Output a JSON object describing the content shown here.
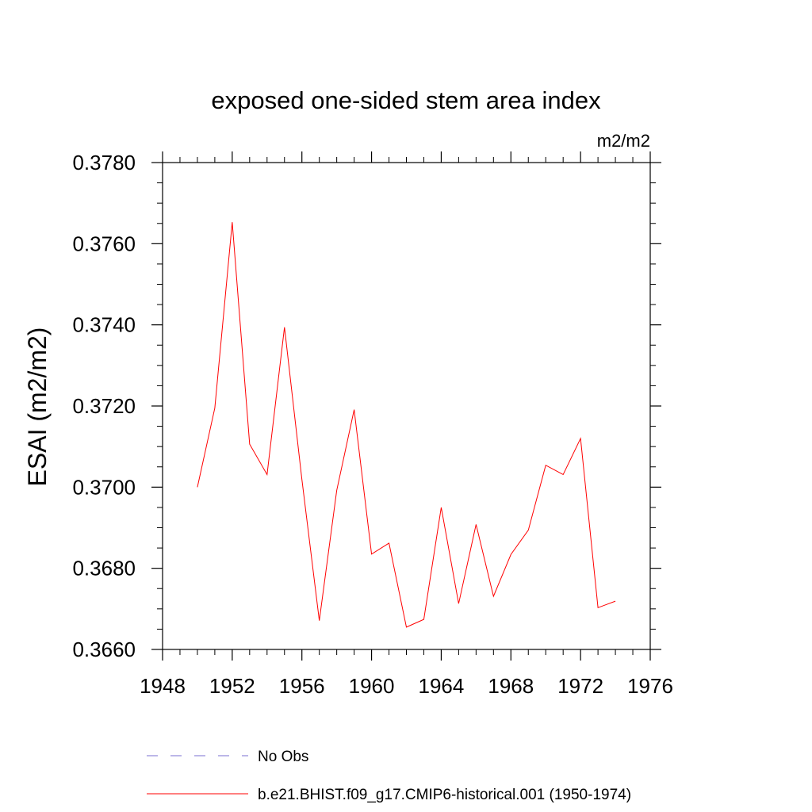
{
  "chart_data": {
    "type": "line",
    "title": "exposed one-sided stem area index",
    "units_label": "m2/m2",
    "ylabel": "ESAI  (m2/m2)",
    "xlabel": "",
    "xlim": [
      1948,
      1976
    ],
    "ylim": [
      0.366,
      0.378
    ],
    "x_ticks": [
      1948,
      1952,
      1956,
      1960,
      1964,
      1968,
      1972,
      1976
    ],
    "x_tick_labels": [
      "1948",
      "1952",
      "1956",
      "1960",
      "1964",
      "1968",
      "1972",
      "1976"
    ],
    "y_ticks": [
      0.366,
      0.368,
      0.37,
      0.372,
      0.374,
      0.376,
      0.378
    ],
    "y_tick_labels": [
      "0.3660",
      "0.3680",
      "0.3700",
      "0.3720",
      "0.3740",
      "0.3760",
      "0.3780"
    ],
    "series": [
      {
        "name": "b.e21.BHIST.f09_g17.CMIP6-historical.001 (1950-1974)",
        "color": "#ff0000",
        "style": "solid",
        "x": [
          1950,
          1951,
          1952,
          1953,
          1954,
          1955,
          1956,
          1957,
          1958,
          1959,
          1960,
          1961,
          1962,
          1963,
          1964,
          1965,
          1966,
          1967,
          1968,
          1969,
          1970,
          1971,
          1972,
          1973,
          1974
        ],
        "values": [
          0.37,
          0.37195,
          0.37653,
          0.37106,
          0.37031,
          0.37394,
          0.37019,
          0.36671,
          0.36992,
          0.37191,
          0.36835,
          0.36862,
          0.36655,
          0.36674,
          0.3695,
          0.36713,
          0.36908,
          0.36731,
          0.36834,
          0.36894,
          0.37054,
          0.37031,
          0.3712,
          0.36703,
          0.36719
        ]
      }
    ],
    "legend": [
      {
        "label": "No Obs",
        "color": "#7a6fd0",
        "style": "dashed"
      },
      {
        "label": "b.e21.BHIST.f09_g17.CMIP6-historical.001 (1950-1974)",
        "color": "#ff0000",
        "style": "solid"
      }
    ]
  }
}
